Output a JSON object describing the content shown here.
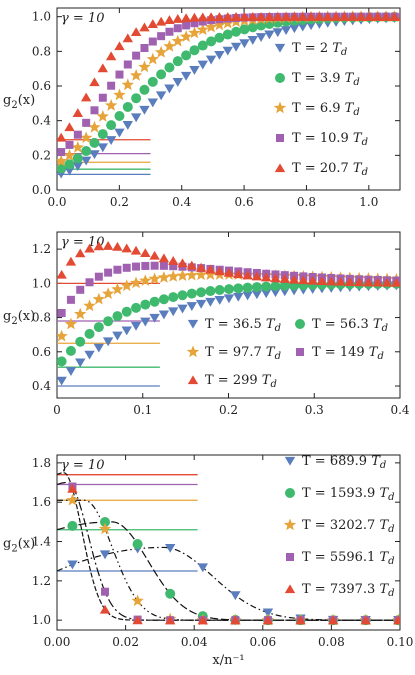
{
  "colors": {
    "blue": "#5a7dbe",
    "green": "#3fb96d",
    "orange": "#e6a43a",
    "purple": "#a061b0",
    "red": "#e34a33"
  },
  "chart_data": [
    {
      "type": "scatter",
      "annotation": "γ = 10",
      "ylabel": "g₂(x)",
      "xlabel": "",
      "xlim": [
        0,
        1.1
      ],
      "ylim": [
        0,
        1.05
      ],
      "xticks": [
        0.0,
        0.2,
        0.4,
        0.6,
        0.8,
        1.0
      ],
      "xtick_labels": [
        "0.0",
        "0.2",
        "0.4",
        "0.6",
        "0.8",
        "1.0"
      ],
      "yticks": [
        0.0,
        0.2,
        0.4,
        0.6,
        0.8,
        1.0
      ],
      "ytick_labels": [
        "0.0",
        "0.2",
        "0.4",
        "0.6",
        "0.8",
        "1.0"
      ],
      "legend_position": "right",
      "series": [
        {
          "name": "T = 2 ",
          "sub": "T",
          "subd": "d",
          "marker": "triangle-down",
          "color": "blue",
          "g0": 0.09,
          "scale": 0.42,
          "pow": 1.6,
          "hline": 0.09
        },
        {
          "name": "T = 3.9 ",
          "sub": "T",
          "subd": "d",
          "marker": "circle",
          "color": "green",
          "g0": 0.12,
          "scale": 0.34,
          "pow": 1.6,
          "hline": 0.12
        },
        {
          "name": "T = 6.9 ",
          "sub": "T",
          "subd": "d",
          "marker": "star",
          "color": "orange",
          "g0": 0.16,
          "scale": 0.27,
          "pow": 1.6,
          "hline": 0.16
        },
        {
          "name": "T = 10.9 ",
          "sub": "T",
          "subd": "d",
          "marker": "square",
          "color": "purple",
          "g0": 0.21,
          "scale": 0.22,
          "pow": 1.6,
          "hline": 0.21
        },
        {
          "name": "T = 20.7 ",
          "sub": "T",
          "subd": "d",
          "marker": "triangle-up",
          "color": "red",
          "g0": 0.29,
          "scale": 0.16,
          "pow": 1.6,
          "hline": 0.29
        }
      ]
    },
    {
      "type": "scatter",
      "annotation": "γ = 10",
      "ylabel": "g₂(x)",
      "xlabel": "",
      "xlim": [
        0,
        0.4
      ],
      "ylim": [
        0.33,
        1.3
      ],
      "xticks": [
        0.0,
        0.1,
        0.2,
        0.3,
        0.4
      ],
      "xtick_labels": [
        "0",
        "0.1",
        "0.2",
        "0.3",
        "0.4"
      ],
      "yticks": [
        0.4,
        0.6,
        0.8,
        1.0,
        1.2
      ],
      "ytick_labels": [
        "0.4",
        "0.6",
        "0.8",
        "1.0",
        "1.2"
      ],
      "legend_position": "bottom-right",
      "series": [
        {
          "name": "T = 36.5 ",
          "sub": "T",
          "subd": "d",
          "marker": "triangle-down",
          "color": "blue",
          "g0": 0.4,
          "scale": 0.105,
          "peak": 0.0,
          "hline": 0.4
        },
        {
          "name": "T = 56.3 ",
          "sub": "T",
          "subd": "d",
          "marker": "circle",
          "color": "green",
          "g0": 0.51,
          "scale": 0.075,
          "peak": 0.0,
          "hline": 0.51
        },
        {
          "name": "T = 97.7 ",
          "sub": "T",
          "subd": "d",
          "marker": "star",
          "color": "orange",
          "g0": 0.65,
          "scale": 0.055,
          "peak": 0.07,
          "hline": 0.65
        },
        {
          "name": "T = 149 ",
          "sub": "T",
          "subd": "d",
          "marker": "square",
          "color": "purple",
          "g0": 0.78,
          "scale": 0.04,
          "peak": 0.12,
          "hline": 0.78
        },
        {
          "name": "T = 299 ",
          "sub": "T",
          "subd": "d",
          "marker": "triangle-up",
          "color": "red",
          "g0": 1.0,
          "scale": 0.026,
          "peak": 0.22,
          "hline": 1.0
        }
      ]
    },
    {
      "type": "scatter",
      "annotation": "γ = 10",
      "ylabel": "g₂(x)",
      "xlabel": "x/n⁻¹",
      "xlim": [
        0,
        0.1
      ],
      "ylim": [
        0.95,
        1.84
      ],
      "xticks": [
        0.0,
        0.02,
        0.04,
        0.06,
        0.08,
        0.1
      ],
      "xtick_labels": [
        "0.00",
        "0.02",
        "0.04",
        "0.06",
        "0.08",
        "0.10"
      ],
      "yticks": [
        1.0,
        1.2,
        1.4,
        1.6,
        1.8
      ],
      "ytick_labels": [
        "1.0",
        "1.2",
        "1.4",
        "1.6",
        "1.8"
      ],
      "legend_position": "top-right",
      "series": [
        {
          "name": "T = 689.9 ",
          "sub": "T",
          "subd": "d",
          "marker": "triangle-down",
          "color": "blue",
          "g0": 1.25,
          "peakx": 0.031,
          "peaky": 1.37,
          "width": 0.03,
          "hline": 1.25
        },
        {
          "name": "T = 1593.9 ",
          "sub": "T",
          "subd": "d",
          "marker": "circle",
          "color": "green",
          "g0": 1.46,
          "peakx": 0.016,
          "peaky": 1.5,
          "width": 0.022,
          "hline": 1.46
        },
        {
          "name": "T = 3202.7 ",
          "sub": "T",
          "subd": "d",
          "marker": "star",
          "color": "orange",
          "g0": 1.61,
          "peakx": 0.008,
          "peaky": 1.61,
          "width": 0.017,
          "hline": 1.61
        },
        {
          "name": "T = 5596.1 ",
          "sub": "T",
          "subd": "d",
          "marker": "square",
          "color": "purple",
          "g0": 1.69,
          "peakx": 0.003,
          "peaky": 1.7,
          "width": 0.013,
          "hline": 1.69
        },
        {
          "name": "T = 7397.3 ",
          "sub": "T",
          "subd": "d",
          "marker": "triangle-up",
          "color": "red",
          "g0": 1.74,
          "peakx": 0.002,
          "peaky": 1.75,
          "width": 0.011,
          "hline": 1.74
        }
      ]
    }
  ]
}
